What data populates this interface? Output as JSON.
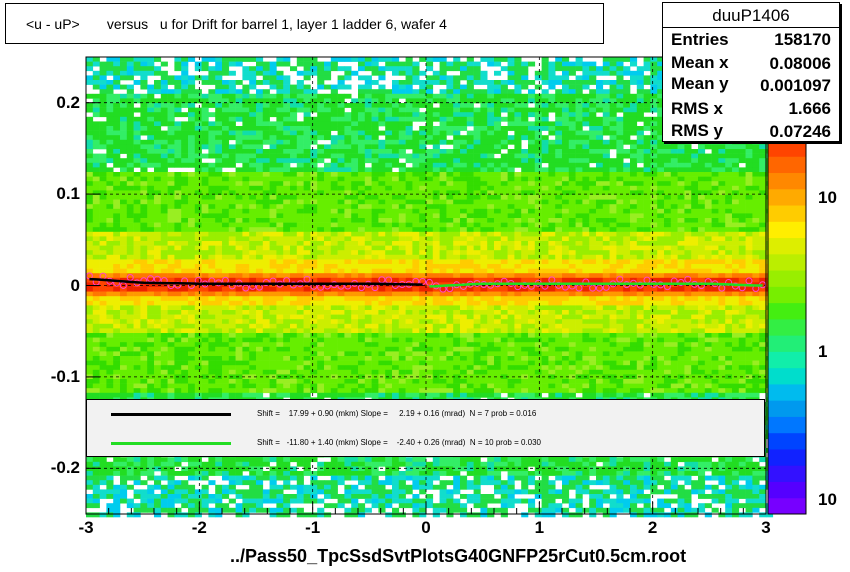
{
  "title": "<u - uP>       versus   u for Drift for barrel 1, layer 1 ladder 6, wafer 4",
  "stats": {
    "name": "duuP1406",
    "rows": [
      {
        "label": "Entries",
        "value": "158170"
      },
      {
        "label": "Mean x",
        "value": "0.08006"
      },
      {
        "label": "Mean y",
        "value": "0.001097"
      },
      {
        "label": "RMS x",
        "value": "1.666"
      },
      {
        "label": "RMS y",
        "value": "0.07246"
      }
    ]
  },
  "footer": "../Pass50_TpcSsdSvtPlotsG40GNFP25rCut0.5cm.root",
  "legend": [
    {
      "color": "#000000",
      "text": "Shift =    17.99 + 0.90 (mkm) Slope =     2.19 + 0.16 (mrad)  N = 7 prob = 0.016"
    },
    {
      "color": "#22dd22",
      "text": "Shift =   -11.80 + 1.40 (mkm) Slope =    -2.40 + 0.26 (mrad)  N = 10 prob = 0.030"
    }
  ],
  "chart_data": {
    "type": "heatmap",
    "xlim": [
      -3,
      3
    ],
    "ylim": [
      -0.25,
      0.25
    ],
    "x_ticks": [
      "-3",
      "-2",
      "-1",
      "0",
      "1",
      "2",
      "3"
    ],
    "y_ticks": [
      "-0.2",
      "-0.1",
      "0",
      "0.1",
      "0.2"
    ],
    "z_ticks": [
      "1",
      "10",
      "10"
    ],
    "grid": true,
    "z_scale": "log",
    "profile_black": {
      "x": [
        -2.95,
        -2.5,
        -2.0,
        -1.5,
        -1.0,
        -0.5,
        -0.05
      ],
      "y": [
        0.007,
        0.003,
        0.002,
        0.002,
        0.002,
        0.002,
        0.001
      ]
    },
    "profile_green": {
      "x": [
        0.05,
        0.5,
        1.0,
        1.5,
        2.0,
        2.5,
        2.9
      ],
      "y": [
        -0.001,
        0.002,
        0.002,
        0.002,
        0.002,
        0.002,
        0.0
      ]
    }
  }
}
